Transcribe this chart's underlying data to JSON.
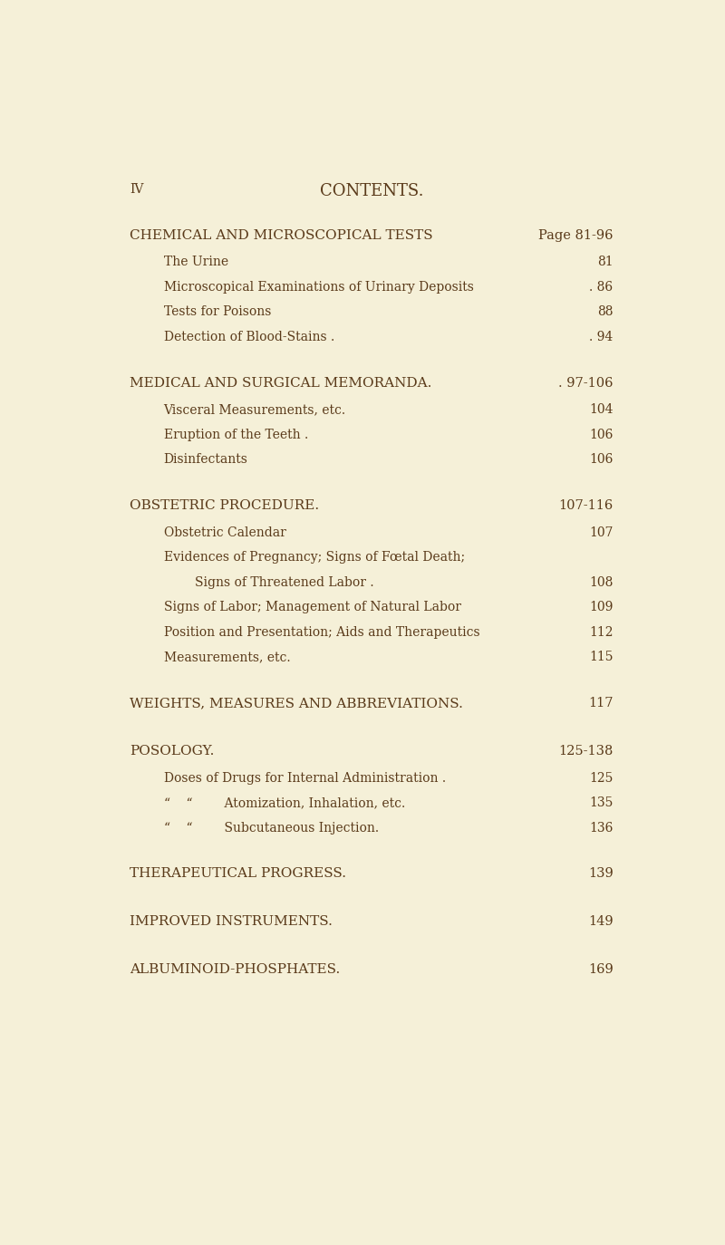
{
  "background_color": "#f5f0d8",
  "page_num": "IV",
  "title": "CONTENTS.",
  "text_color": "#5a3a1a",
  "figsize": [
    8.0,
    13.74
  ],
  "dpi": 100,
  "sections": [
    {
      "heading": "Chemical and Microscopical Tests",
      "page_range": "Page 81-96",
      "items": [
        {
          "text": "The Urine",
          "indent": 1,
          "page": "81"
        },
        {
          "text": "Microscopical Examinations of Urinary Deposits",
          "indent": 1,
          "page": ". 86"
        },
        {
          "text": "Tests for Poisons",
          "indent": 1,
          "page": "88"
        },
        {
          "text": "Detection of Blood-Stains .",
          "indent": 1,
          "page": ". 94"
        }
      ]
    },
    {
      "heading": "Medical and Surgical Memoranda.",
      "page_range": ". 97-106",
      "items": [
        {
          "text": "Visceral Measurements, etc.",
          "indent": 1,
          "page": "104"
        },
        {
          "text": "Eruption of the Teeth .",
          "indent": 1,
          "page": "106"
        },
        {
          "text": "Disinfectants",
          "indent": 1,
          "page": "106"
        }
      ]
    },
    {
      "heading": "Obstetric Procedure.",
      "page_range": "107-116",
      "items": [
        {
          "text": "Obstetric Calendar",
          "indent": 1,
          "page": "107"
        },
        {
          "text": "Evidences of Pregnancy; Signs of Fœtal Death;",
          "indent": 1,
          "page": ""
        },
        {
          "text": "Signs of Threatened Labor .",
          "indent": 2,
          "page": "108"
        },
        {
          "text": "Signs of Labor; Management of Natural Labor",
          "indent": 1,
          "page": "109"
        },
        {
          "text": "Position and Presentation; Aids and Therapeutics",
          "indent": 1,
          "page": "112"
        },
        {
          "text": "Measurements, etc.",
          "indent": 1,
          "page": "115"
        }
      ]
    },
    {
      "heading": "Weights, Measures and Abbreviations.",
      "page_range": "117",
      "items": []
    },
    {
      "heading": "Posology.",
      "page_range": "125-138",
      "items": [
        {
          "text": "Doses of Drugs for Internal Administration .",
          "indent": 1,
          "page": "125"
        },
        {
          "text": "“    “        Atomization, Inhalation, etc.",
          "indent": 1,
          "page": "135"
        },
        {
          "text": "“    “        Subcutaneous Injection.",
          "indent": 1,
          "page": "136"
        }
      ]
    },
    {
      "heading": "Therapeutical Progress.",
      "page_range": "139",
      "items": []
    },
    {
      "heading": "Improved Instruments.",
      "page_range": "149",
      "items": []
    },
    {
      "heading": "Albuminoid-Phosphates.",
      "page_range": "169",
      "items": []
    }
  ]
}
